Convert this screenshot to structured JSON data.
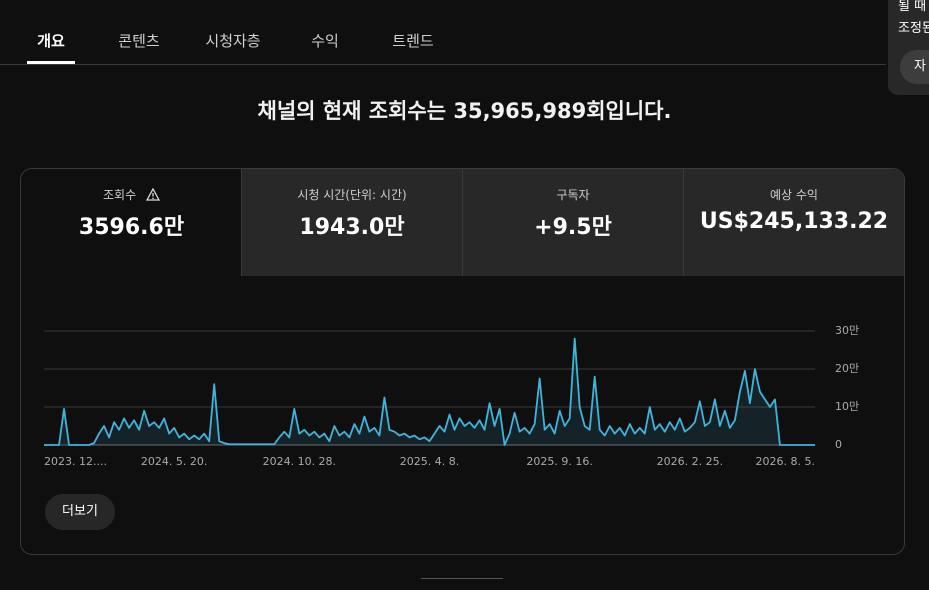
{
  "tabs": [
    "개요",
    "콘텐츠",
    "시청자층",
    "수익",
    "트렌드"
  ],
  "headline": "채널의 현재 조회수는 35,965,989회입니다.",
  "metrics": [
    {
      "label": "조회수",
      "value": "3596.6만"
    },
    {
      "label": "시청 시간(단위: 시간)",
      "value": "1943.0만"
    },
    {
      "label": "구독자",
      "value": "+9.5만"
    },
    {
      "label": "예상 수익",
      "value": "US$245,133.22"
    }
  ],
  "more_button": "더보기",
  "popup": {
    "lines": [
      "될 때",
      "조정된"
    ],
    "button": "자"
  },
  "chart_data": {
    "type": "line",
    "color": "#41b4dc",
    "categories": [
      "2023. 12....",
      null,
      null,
      null,
      null,
      null,
      null,
      null,
      null,
      null,
      null,
      null,
      null,
      null,
      null,
      null,
      null,
      null,
      null,
      null,
      null,
      null,
      null,
      null,
      null,
      null,
      "2024. 5. 20.",
      null,
      null,
      null,
      null,
      null,
      null,
      null,
      null,
      null,
      null,
      null,
      null,
      null,
      null,
      null,
      null,
      null,
      null,
      null,
      null,
      null,
      null,
      null,
      null,
      "2024. 10. 28.",
      null,
      null,
      null,
      null,
      null,
      null,
      null,
      null,
      null,
      null,
      null,
      null,
      null,
      null,
      null,
      null,
      null,
      null,
      null,
      null,
      null,
      null,
      null,
      null,
      null,
      "2025. 4. 8.",
      null,
      null,
      null,
      null,
      null,
      null,
      null,
      null,
      null,
      null,
      null,
      null,
      null,
      null,
      null,
      null,
      null,
      null,
      null,
      null,
      null,
      null,
      null,
      null,
      null,
      "2025. 9. 16.",
      null,
      null,
      null,
      null,
      null,
      null,
      null,
      null,
      null,
      null,
      null,
      null,
      null,
      null,
      null,
      null,
      null,
      null,
      null,
      null,
      null,
      null,
      null,
      null,
      null,
      "2026. 2. 25.",
      null,
      null,
      null,
      null,
      null,
      null,
      null,
      null,
      null,
      null,
      null,
      null,
      null,
      null,
      null,
      null,
      null,
      null,
      null,
      null,
      null,
      null,
      null,
      null,
      "2026. 8. 5."
    ],
    "values": [
      0,
      0,
      0,
      0,
      95000,
      0,
      0,
      0,
      0,
      0,
      5000,
      30000,
      50000,
      20000,
      60000,
      40000,
      70000,
      45000,
      65000,
      40000,
      90000,
      50000,
      60000,
      45000,
      70000,
      30000,
      45000,
      20000,
      30000,
      15000,
      25000,
      15000,
      30000,
      10000,
      160000,
      10000,
      5000,
      2000,
      2000,
      2000,
      2000,
      2000,
      2000,
      2000,
      2000,
      2000,
      2000,
      20000,
      35000,
      20000,
      95000,
      30000,
      40000,
      25000,
      35000,
      20000,
      30000,
      10000,
      50000,
      25000,
      35000,
      20000,
      55000,
      30000,
      75000,
      35000,
      45000,
      25000,
      125000,
      40000,
      35000,
      25000,
      30000,
      20000,
      25000,
      15000,
      20000,
      10000,
      30000,
      50000,
      35000,
      80000,
      40000,
      70000,
      50000,
      60000,
      45000,
      65000,
      40000,
      110000,
      50000,
      95000,
      0,
      30000,
      85000,
      35000,
      45000,
      30000,
      55000,
      175000,
      40000,
      55000,
      30000,
      90000,
      50000,
      70000,
      280000,
      100000,
      50000,
      40000,
      180000,
      40000,
      25000,
      50000,
      30000,
      45000,
      25000,
      55000,
      30000,
      45000,
      30000,
      100000,
      40000,
      55000,
      35000,
      60000,
      40000,
      70000,
      35000,
      45000,
      60000,
      115000,
      50000,
      60000,
      120000,
      50000,
      90000,
      45000,
      65000,
      140000,
      195000,
      110000,
      200000,
      140000,
      120000,
      100000,
      120000,
      0,
      0,
      0,
      0,
      0,
      0,
      0,
      0
    ],
    "ylim": [
      0,
      300000
    ],
    "yticks": [
      0,
      {
        "value": 100000,
        "label": "10만"
      },
      {
        "value": 200000,
        "label": "20만"
      },
      {
        "value": 300000,
        "label": "30만"
      }
    ],
    "grid": true
  }
}
